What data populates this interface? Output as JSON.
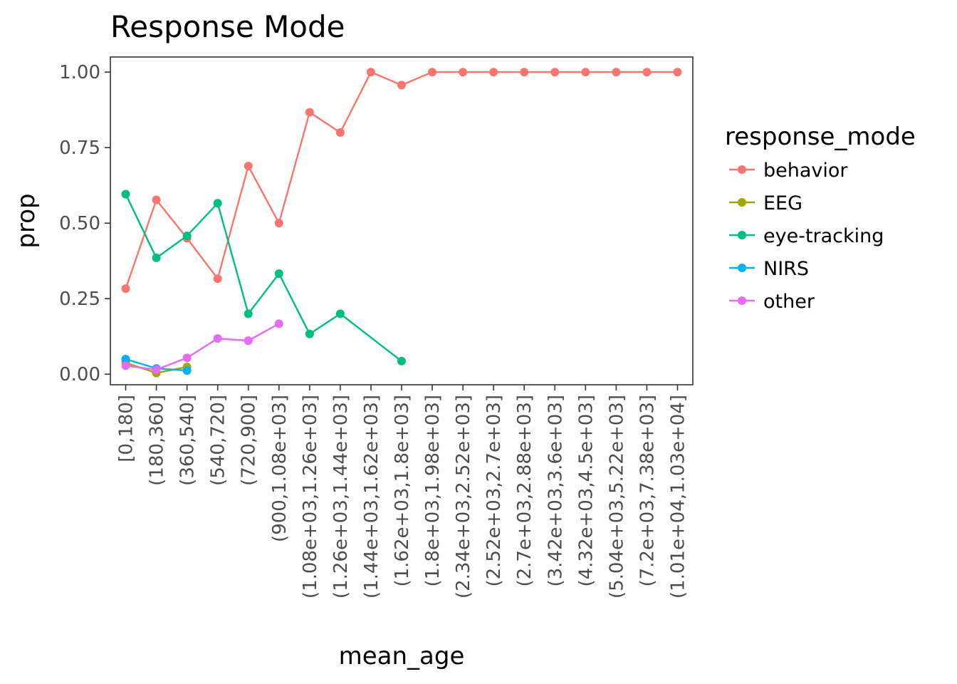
{
  "chart_data": {
    "type": "line",
    "title": "Response Mode",
    "xlabel": "mean_age",
    "ylabel": "prop",
    "ylim": [
      -0.035,
      1.05
    ],
    "yticks": [
      0.0,
      0.25,
      0.5,
      0.75,
      1.0
    ],
    "ytick_labels": [
      "0.00",
      "0.25",
      "0.50",
      "0.75",
      "1.00"
    ],
    "grid": false,
    "legend_position": "right",
    "legend_title": "response_mode",
    "categories": [
      "[0,180]",
      "(180,360]",
      "(360,540]",
      "(540,720]",
      "(720,900]",
      "(900,1.08e+03]",
      "(1.08e+03,1.26e+03]",
      "(1.26e+03,1.44e+03]",
      "(1.44e+03,1.62e+03]",
      "(1.62e+03,1.8e+03]",
      "(1.8e+03,1.98e+03]",
      "(2.34e+03,2.52e+03]",
      "(2.52e+03,2.7e+03]",
      "(2.7e+03,2.88e+03]",
      "(3.42e+03,3.6e+03]",
      "(4.32e+03,4.5e+03]",
      "(5.04e+03,5.22e+03]",
      "(7.2e+03,7.38e+03]",
      "(1.01e+04,1.03e+04]"
    ],
    "series": [
      {
        "name": "behavior",
        "color": "#F8766D",
        "values": [
          0.283,
          0.577,
          0.45,
          0.316,
          0.689,
          0.5,
          0.867,
          0.8,
          1.0,
          0.957,
          1.0,
          1.0,
          1.0,
          1.0,
          1.0,
          1.0,
          1.0,
          1.0,
          1.0
        ]
      },
      {
        "name": "EEG",
        "color": "#A3A500",
        "values": [
          0.038,
          0.004,
          0.024,
          null,
          null,
          null,
          null,
          null,
          null,
          null,
          null,
          null,
          null,
          null,
          null,
          null,
          null,
          null,
          null
        ]
      },
      {
        "name": "eye-tracking",
        "color": "#00BF7D",
        "values": [
          0.596,
          0.385,
          0.458,
          0.566,
          0.2,
          0.333,
          0.133,
          0.2,
          null,
          0.043,
          null,
          null,
          null,
          null,
          null,
          null,
          null,
          null,
          null
        ]
      },
      {
        "name": "NIRS",
        "color": "#00B0F6",
        "values": [
          0.05,
          0.019,
          0.012,
          null,
          null,
          null,
          null,
          null,
          null,
          null,
          null,
          null,
          null,
          null,
          null,
          null,
          null,
          null,
          null
        ]
      },
      {
        "name": "other",
        "color": "#E76BF3",
        "values": [
          0.028,
          0.015,
          0.054,
          0.118,
          0.111,
          0.167,
          null,
          null,
          null,
          null,
          null,
          null,
          null,
          null,
          null,
          null,
          null,
          null,
          null
        ]
      }
    ]
  }
}
